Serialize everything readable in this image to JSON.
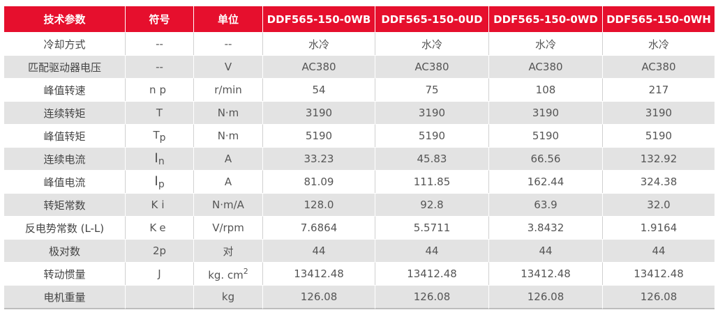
{
  "colors": {
    "header_background": "#e60f2d",
    "header_text": "#ffffff",
    "shaded_row": "#e3e3e3",
    "body_text": "#555555"
  },
  "headers": [
    "技术参数",
    "符号",
    "单位",
    "DDF565-150-0WB",
    "DDF565-150-0UD",
    "DDF565-150-0WD",
    "DDF565-150-0WH"
  ],
  "rows": [
    {
      "param": "冷却方式",
      "symbol_text": "--",
      "unit": "--",
      "values": [
        "水冷",
        "水冷",
        "水冷",
        "水冷"
      ]
    },
    {
      "param": "匹配驱动器电压",
      "symbol_text": "--",
      "unit": "V",
      "values": [
        "AC380",
        "AC380",
        "AC380",
        "AC380"
      ]
    },
    {
      "param": "峰值转速",
      "symbol_text": "np",
      "unit": "r/min",
      "values": [
        "54",
        "75",
        "108",
        "217"
      ]
    },
    {
      "param": "连续转矩",
      "symbol_text": "T",
      "unit": "N·m",
      "values": [
        "3190",
        "3190",
        "3190",
        "3190"
      ]
    },
    {
      "param": "峰值转矩",
      "symbol_main": "T",
      "symbol_sub": "p",
      "unit": "N·m",
      "values": [
        "5190",
        "5190",
        "5190",
        "5190"
      ]
    },
    {
      "param": "连续电流",
      "symbol_main": "I",
      "symbol_sub": "n",
      "unit": "A",
      "values": [
        "33.23",
        "45.83",
        "66.56",
        "132.92"
      ]
    },
    {
      "param": "峰值电流",
      "symbol_main": "I",
      "symbol_sub": "p",
      "unit": "A",
      "values": [
        "81.09",
        "111.85",
        "162.44",
        "324.38"
      ]
    },
    {
      "param": "转矩常数",
      "symbol_text": "Ki",
      "unit": "N·m/A",
      "values": [
        "128.0",
        "92.8",
        "63.9",
        "32.0"
      ]
    },
    {
      "param": "反电势常数 (L-L)",
      "symbol_text": "Ke",
      "unit": "V/rpm",
      "values": [
        "7.6864",
        "5.5711",
        "3.8432",
        "1.9164"
      ]
    },
    {
      "param": "极对数",
      "symbol_text": "2p",
      "unit": "对",
      "values": [
        "44",
        "44",
        "44",
        "44"
      ]
    },
    {
      "param": "转动惯量",
      "symbol_text": "J",
      "unit_main": "kg. cm",
      "unit_sup": "2",
      "values": [
        "13412.48",
        "13412.48",
        "13412.48",
        "13412.48"
      ]
    },
    {
      "param": "电机重量",
      "symbol_text": "",
      "unit": "kg",
      "values": [
        "126.08",
        "126.08",
        "126.08",
        "126.08"
      ]
    }
  ]
}
